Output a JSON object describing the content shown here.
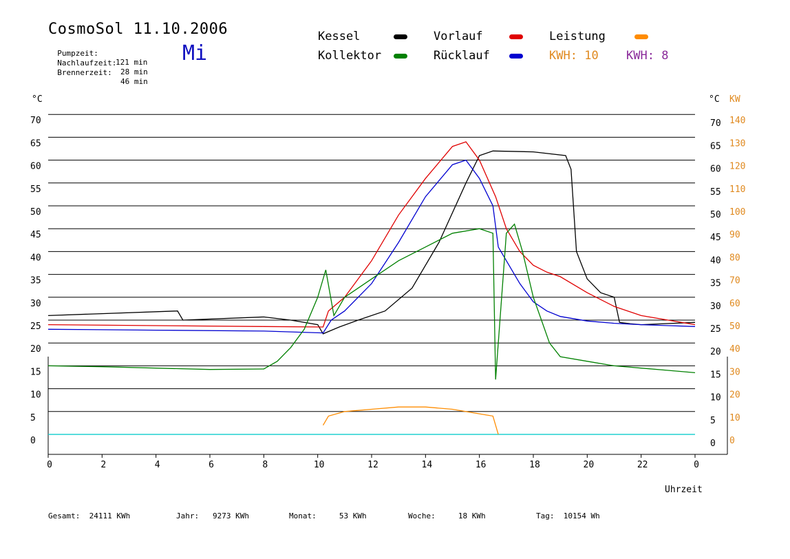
{
  "header": {
    "title": "CosmoSol 11.10.2006",
    "day": "Mi",
    "stats": [
      {
        "label": "Pumpzeit:",
        "value": "121 min"
      },
      {
        "label": "Nachlaufzeit:",
        "value": "28 min"
      },
      {
        "label": "Brennerzeit:",
        "value": "46 min"
      }
    ]
  },
  "legend": {
    "items": [
      {
        "label": "Kessel",
        "color": "#000000"
      },
      {
        "label": "Vorlauf",
        "color": "#e00000"
      },
      {
        "label": "Leistung",
        "color": "#ff8c00"
      },
      {
        "label": "Kollektor",
        "color": "#008000"
      },
      {
        "label": "Rücklauf",
        "color": "#0000d0"
      }
    ],
    "kwh": [
      {
        "label": "KWH:",
        "value": "10",
        "color": "#e08a20"
      },
      {
        "label": "KWH:",
        "value": "8",
        "color": "#8a2a9a"
      }
    ]
  },
  "footer": [
    {
      "label": "Gesamt:",
      "value": "24111 KWh"
    },
    {
      "label": "Jahr:",
      "value": "9273 KWh"
    },
    {
      "label": "Monat:",
      "value": "53 KWh"
    },
    {
      "label": "Woche:",
      "value": "18 KWh"
    },
    {
      "label": "Tag:",
      "value": "10154 Wh"
    }
  ],
  "chart_data": {
    "type": "line",
    "xlabel": "Uhrzeit",
    "ylabel_left": "°C",
    "ylabel_right": "°C",
    "ylabel_power": "KW",
    "x_ticks": [
      "0",
      "2",
      "4",
      "6",
      "8",
      "10",
      "12",
      "14",
      "16",
      "18",
      "20",
      "22",
      "0"
    ],
    "y_ticks_left": [
      0,
      5,
      10,
      15,
      20,
      25,
      30,
      35,
      40,
      45,
      50,
      55,
      60,
      65,
      70
    ],
    "y_ticks_right_temp": [
      0,
      5,
      10,
      15,
      20,
      25,
      30,
      35,
      40,
      45,
      50,
      55,
      60,
      65,
      70
    ],
    "y_ticks_right_power": [
      0,
      10,
      20,
      30,
      40,
      50,
      60,
      70,
      80,
      90,
      100,
      110,
      120,
      130,
      140
    ],
    "xlim": [
      0,
      24
    ],
    "ylim": [
      0,
      70
    ],
    "grid": true,
    "series": [
      {
        "name": "Kessel",
        "color": "#000000",
        "x": [
          0,
          4.8,
          5,
          8,
          9,
          10,
          10.2,
          10.8,
          11.5,
          12.5,
          13.5,
          14.5,
          15.5,
          16,
          16.5,
          18,
          19.2,
          19.4,
          19.6,
          20,
          20.5,
          21,
          21.2,
          21.6,
          22,
          24
        ],
        "y": [
          26,
          27,
          25,
          25.7,
          25,
          24,
          22,
          23.5,
          25,
          27,
          32,
          42,
          55,
          61,
          62,
          61.8,
          61,
          58,
          40,
          34,
          31,
          30,
          24.5,
          24.2,
          24,
          24.5
        ]
      },
      {
        "name": "Vorlauf",
        "color": "#e00000",
        "x": [
          0,
          4,
          8,
          10.2,
          10.4,
          11,
          12,
          13,
          14,
          15,
          15.5,
          16,
          16.6,
          17,
          17.5,
          18,
          18.5,
          19,
          20,
          21,
          22,
          23,
          24
        ],
        "y": [
          24,
          23.8,
          23.6,
          23.5,
          27,
          30,
          38,
          48,
          56,
          63,
          64,
          60,
          52,
          45,
          40,
          37,
          35.5,
          34.5,
          31,
          28,
          26,
          25,
          24
        ]
      },
      {
        "name": "Rücklauf",
        "color": "#0000d0",
        "x": [
          0,
          4,
          8,
          10.2,
          10.5,
          11,
          12,
          13,
          14,
          15,
          15.5,
          16,
          16.5,
          16.7,
          17,
          17.5,
          18,
          18.5,
          19,
          20,
          21,
          22,
          23,
          24
        ],
        "y": [
          23,
          22.8,
          22.6,
          22.2,
          25,
          27,
          33,
          42,
          52,
          59,
          60,
          56,
          50,
          41,
          38,
          33,
          29,
          27,
          25.8,
          24.8,
          24.3,
          24,
          23.8,
          23.6
        ]
      },
      {
        "name": "Kollektor",
        "color": "#008000",
        "x": [
          0,
          2,
          4,
          6,
          8,
          8.5,
          9,
          9.5,
          10,
          10.3,
          10.6,
          11,
          12,
          13,
          14,
          15,
          16,
          16.5,
          16.6,
          16.7,
          17,
          17.3,
          17.6,
          18,
          18.3,
          18.6,
          19,
          20,
          21,
          22,
          23,
          24
        ],
        "y": [
          15,
          14.8,
          14.5,
          14.2,
          14.3,
          16,
          19,
          23,
          30,
          36,
          26,
          30,
          34,
          38,
          41,
          44,
          45,
          44,
          12,
          20,
          44,
          46,
          40,
          30,
          25,
          20,
          17,
          16,
          15,
          14.5,
          14,
          13.5
        ]
      },
      {
        "name": "Leistung",
        "color": "#ff8c00",
        "x": [
          10.2,
          10.4,
          11,
          12,
          13,
          14,
          15,
          16,
          16.5,
          16.7
        ],
        "y": [
          2,
          4,
          5,
          5.5,
          6,
          6,
          5.5,
          4.5,
          4,
          0
        ]
      }
    ]
  }
}
